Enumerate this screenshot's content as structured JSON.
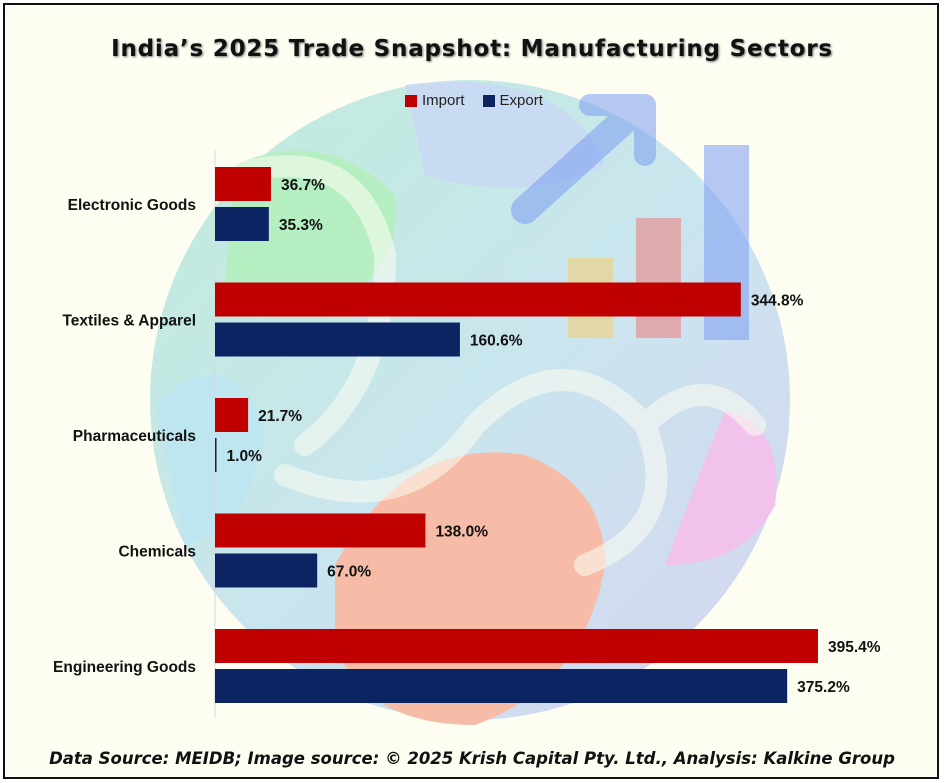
{
  "title": "India’s 2025 Trade Snapshot: Manufacturing Sectors",
  "footer": "Data Source: MEIDB; Image source: © 2025 Krish Capital Pty. Ltd., Analysis: Kalkine Group",
  "legend": [
    {
      "label": "Import",
      "color": "#c00000"
    },
    {
      "label": "Export",
      "color": "#0d2463"
    }
  ],
  "chart_data": {
    "type": "bar",
    "orientation": "horizontal",
    "categories": [
      "Electronic Goods",
      "Textiles & Apparel",
      "Pharmaceuticals",
      "Chemicals",
      "Engineering Goods"
    ],
    "series": [
      {
        "name": "Import",
        "color": "#c00000",
        "values": [
          36.7,
          344.8,
          21.7,
          138.0,
          395.4
        ],
        "labels": [
          "36.7%",
          "344.8%",
          "21.7%",
          "138.0%",
          "395.4%"
        ]
      },
      {
        "name": "Export",
        "color": "#0d2463",
        "values": [
          35.3,
          160.6,
          1.0,
          67.0,
          375.2
        ],
        "labels": [
          "35.3%",
          "160.6%",
          "1.0%",
          "67.0%",
          "375.2%"
        ]
      }
    ],
    "legend_position": "top",
    "grid": false
  }
}
